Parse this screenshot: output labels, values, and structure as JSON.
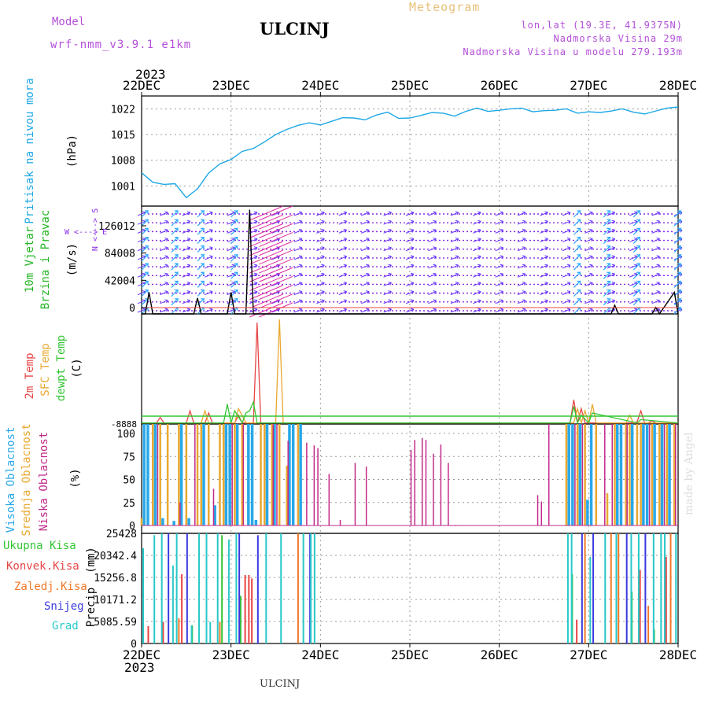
{
  "header": {
    "model_label": "Model",
    "model_name": "wrf-nmm_v3.9.1 e1km",
    "station": "ULCINJ",
    "product": "Meteogram",
    "coords": "lon,lat (19.3E, 41.9375N)",
    "elevation": "Nadmorska Visina 29m",
    "model_elevation": "Nadmorska Visina u modelu 279.193m"
  },
  "footer": {
    "station": "ULCINJ",
    "credit": "made by Angel"
  },
  "colors": {
    "pressure": "#1ea8e6",
    "wind_label": "#22b522",
    "temp2m": "#e84545",
    "sfc_temp": "#e8a830",
    "dewpoint": "#33c533",
    "cloud_high": "#28a8e8",
    "cloud_mid": "#e8a830",
    "cloud_low": "#c22a8a",
    "rain_total": "#33c533",
    "rain_conv": "#e84545",
    "rain_frozen": "#f07828",
    "snow": "#3a3ae0",
    "hail": "#28c8c8",
    "barb_light": "#2aa8ff",
    "barb_mid": "#6a3cff",
    "barb_strong": "#e02aa0",
    "dotted": "#8a2ae0"
  },
  "chart_data": [
    {
      "type": "line",
      "panel": "pressure",
      "ylabel_left": "Pritisak na nivou mora",
      "ylabel_units": "(hPa)",
      "x_start_year": "2023",
      "x_ticks": [
        "22DEC",
        "23DEC",
        "24DEC",
        "25DEC",
        "26DEC",
        "27DEC",
        "28DEC"
      ],
      "y_ticks": [
        1001,
        1008,
        1015,
        1022
      ],
      "ylim": [
        995.5,
        1025.5
      ],
      "x_hours": [
        0,
        3,
        6,
        9,
        12,
        15,
        18,
        21,
        24,
        27,
        30,
        33,
        36,
        39,
        42,
        45,
        48,
        51,
        54,
        57,
        60,
        63,
        66,
        69,
        72,
        75,
        78,
        81,
        84,
        87,
        90,
        93,
        96,
        99,
        102,
        105,
        108,
        111,
        114,
        117,
        120,
        123,
        126,
        129,
        132,
        135,
        138,
        141,
        144
      ],
      "values": [
        1004.6,
        1002.0,
        1001.4,
        1001.6,
        997.8,
        1000.2,
        1004.5,
        1007.0,
        1008.2,
        1010.4,
        1011.2,
        1013.0,
        1015.0,
        1016.4,
        1017.5,
        1018.2,
        1017.6,
        1018.6,
        1019.6,
        1019.5,
        1019.0,
        1020.3,
        1021.1,
        1019.4,
        1019.5,
        1020.2,
        1021.0,
        1020.8,
        1020.0,
        1021.3,
        1022.2,
        1021.3,
        1021.6,
        1022.0,
        1022.2,
        1021.2,
        1021.5,
        1021.6,
        1022.0,
        1020.8,
        1021.2,
        1021.0,
        1021.4,
        1022.0,
        1021.1,
        1020.6,
        1021.4,
        1022.2,
        1022.5
      ]
    },
    {
      "type": "line",
      "panel": "wind",
      "ylabel_left_1": "10m Vjetar",
      "ylabel_left_2": "Brzina i Pravac",
      "ylabel_units": "(m/s)",
      "direction_legend_ns": "N <---> S",
      "direction_legend_we": "W <---> E",
      "y_ticks": [
        "0",
        "42004",
        "84008",
        "126012"
      ],
      "ylim": [
        0,
        150000
      ],
      "x_hours": [
        0,
        1,
        2,
        3,
        4,
        14,
        15,
        16,
        23,
        24,
        25,
        26,
        27,
        28,
        29,
        30,
        31,
        32,
        33,
        34,
        35,
        126,
        127,
        128,
        137,
        138,
        139,
        143,
        144
      ],
      "values": [
        0,
        2,
        30000,
        1,
        0,
        0,
        22000,
        0,
        0,
        30000,
        0,
        0,
        0,
        0,
        145000,
        0,
        0,
        0,
        0,
        0,
        0,
        0,
        12000,
        0,
        0,
        9000,
        0,
        30000,
        0
      ],
      "barb_rows": 12
    },
    {
      "type": "line",
      "panel": "temperature",
      "ylabel_left_1": "2m Temp",
      "ylabel_left_2": "SFC Temp",
      "ylabel_left_3": "dewpt Temp",
      "ylabel_units": "(C)",
      "ylim": [
        0,
        100
      ],
      "series": [
        {
          "name": "2m Temp",
          "x_hours": [
            0,
            4,
            5,
            6,
            12,
            13,
            14,
            17,
            18,
            19,
            25,
            26,
            27,
            30,
            31,
            32,
            46,
            47,
            48,
            49,
            50,
            144,
            115,
            116,
            117,
            118,
            119,
            120,
            132,
            133,
            134,
            135,
            136,
            137,
            138
          ],
          "values": [
            1,
            1,
            6,
            1,
            1,
            12,
            1,
            1,
            10,
            1,
            1,
            8,
            1,
            1,
            92,
            1,
            1,
            1,
            1,
            1,
            1,
            1,
            1,
            22,
            1,
            14,
            1,
            1,
            1,
            2,
            12,
            1,
            1,
            3,
            1
          ]
        },
        {
          "name": "SFC Temp",
          "x_hours": [
            0,
            16,
            17,
            18,
            25,
            26,
            28,
            36,
            37,
            38,
            39,
            116,
            117,
            118,
            119,
            120,
            121,
            122,
            130,
            131,
            132,
            144
          ],
          "values": [
            1,
            1,
            12,
            1,
            1,
            14,
            1,
            1,
            95,
            1,
            1,
            1,
            14,
            1,
            12,
            1,
            18,
            1,
            1,
            8,
            1,
            1
          ],
          "display": "orange"
        },
        {
          "name": "dewpt Temp",
          "x_hours": [
            0,
            22,
            23,
            24,
            25,
            27,
            28,
            29,
            30,
            31,
            32,
            34,
            115,
            116,
            117,
            118,
            120,
            121,
            133,
            134,
            144
          ],
          "values": [
            1,
            1,
            18,
            1,
            12,
            1,
            10,
            12,
            20,
            1,
            1,
            1,
            1,
            16,
            1,
            8,
            1,
            10,
            1,
            4,
            1
          ]
        }
      ]
    },
    {
      "type": "bar",
      "panel": "clouds",
      "ylabel_left_1": "Visoka Oblacnost",
      "ylabel_left_2": "Srednja Oblacnost",
      "ylabel_left_3": "Niska Oblacnost",
      "ylabel_units": "(%)",
      "y_ticks": [
        0,
        25,
        50,
        75,
        100
      ],
      "ylim": [
        0,
        100
      ],
      "series": [
        {
          "name": "Visoka Oblacnost",
          "x_hours": [
            1,
            2,
            4,
            6,
            9,
            11,
            13,
            17,
            20,
            23,
            24,
            26,
            29,
            30,
            31,
            34,
            36,
            40,
            41,
            43,
            115,
            116,
            118,
            120,
            121,
            128,
            129,
            132,
            135,
            136,
            138,
            140,
            142
          ],
          "values": [
            100,
            100,
            100,
            8,
            5,
            100,
            8,
            100,
            22,
            100,
            100,
            100,
            100,
            100,
            6,
            100,
            100,
            100,
            100,
            100,
            100,
            100,
            100,
            28,
            100,
            100,
            100,
            100,
            100,
            100,
            100,
            100,
            100
          ]
        },
        {
          "name": "Srednja Oblacnost",
          "x_hours": [
            0,
            3,
            5,
            7,
            10,
            12,
            15,
            16,
            18,
            21,
            22,
            25,
            27,
            32,
            33,
            35,
            37,
            39,
            42,
            114,
            117,
            119,
            122,
            125,
            127,
            130,
            131,
            133,
            134,
            137,
            139,
            141,
            143
          ],
          "values": [
            8,
            100,
            100,
            100,
            100,
            100,
            100,
            100,
            100,
            100,
            100,
            100,
            100,
            100,
            100,
            100,
            100,
            65,
            100,
            100,
            100,
            100,
            100,
            35,
            100,
            100,
            100,
            100,
            100,
            100,
            100,
            100,
            100
          ]
        },
        {
          "name": "Niska Oblacnost",
          "x_hours": [
            4,
            10,
            14,
            19,
            24,
            27,
            35,
            36,
            39,
            44,
            46,
            47,
            50,
            53,
            57,
            60,
            72,
            73,
            75,
            76,
            78,
            80,
            82,
            84,
            106,
            107,
            109,
            116,
            118,
            124,
            126,
            130,
            136,
            140,
            143
          ],
          "values": [
            100,
            25,
            100,
            40,
            100,
            100,
            100,
            100,
            92,
            90,
            87,
            84,
            56,
            6,
            68,
            64,
            82,
            93,
            95,
            93,
            78,
            88,
            68,
            0,
            33,
            26,
            100,
            100,
            100,
            100,
            100,
            100,
            100,
            100,
            100
          ]
        }
      ]
    },
    {
      "type": "bar",
      "panel": "precipitation",
      "ylabel_units": "(mm)",
      "ylabel_hidden": "Precip",
      "legend": [
        "Ukupna Kisa",
        "Konvek.Kisa",
        "Zaledj.Kisa",
        "Snijeg",
        "Grad"
      ],
      "y_ticks": [
        "0",
        "5085.59",
        "10171.2",
        "15256.8",
        "20342.4",
        "25428"
      ],
      "ylim": [
        0,
        25428
      ],
      "series": [
        {
          "name": "Ukupna Kisa",
          "x_hours": [
            14,
            22,
            27,
            116,
            132,
            138
          ],
          "values": [
            4200,
            25000,
            11000,
            16000,
            12000,
            3200
          ]
        },
        {
          "name": "Konvek.Kisa",
          "x_hours": [
            2,
            6,
            11,
            28,
            29,
            29.8,
            117,
            134,
            141
          ],
          "values": [
            4000,
            5000,
            16000,
            15800,
            15800,
            15000,
            5500,
            17000,
            20000
          ]
        },
        {
          "name": "Zaledj.Kisa",
          "x_hours": [
            10,
            21,
            42,
            119,
            126,
            128,
            136,
            142
          ],
          "values": [
            5800,
            5000,
            25428,
            25428,
            25428,
            25428,
            8700,
            25428
          ]
        },
        {
          "name": "Snijeg",
          "x_hours": [
            7,
            12,
            26,
            31,
            45,
            118,
            121,
            130,
            135
          ],
          "values": [
            25428,
            25428,
            25428,
            25000,
            25428,
            25428,
            25428,
            25428,
            25428
          ]
        },
        {
          "name": "Grad",
          "x_hours": [
            0,
            3,
            5,
            8,
            9,
            13,
            15,
            17,
            18,
            20,
            23,
            25,
            33,
            37,
            43,
            45,
            46,
            114,
            115,
            120,
            124,
            127,
            131,
            133,
            137,
            139,
            140,
            143
          ],
          "values": [
            22000,
            25000,
            25428,
            18000,
            25428,
            4200,
            25428,
            25428,
            5000,
            25428,
            24000,
            25428,
            25428,
            25428,
            25428,
            25428,
            25428,
            25428,
            25428,
            20000,
            25428,
            25428,
            25428,
            25428,
            25428,
            25428,
            25428,
            25428
          ]
        }
      ]
    }
  ]
}
